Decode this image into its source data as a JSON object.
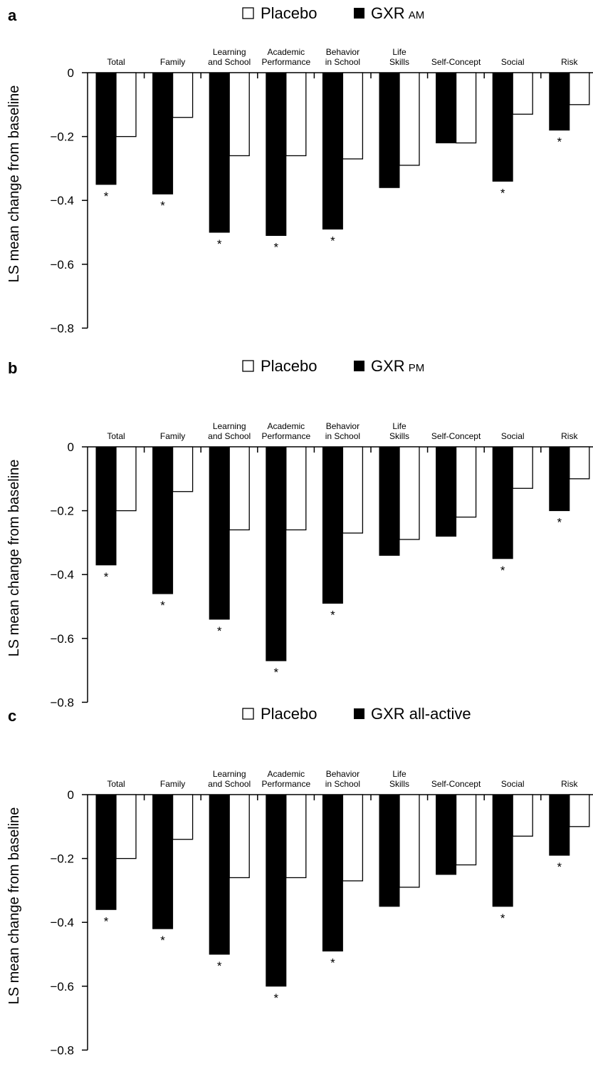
{
  "chart_data": [
    {
      "panel_label": "a",
      "type": "bar",
      "legend": {
        "items": [
          {
            "label": "Placebo",
            "fill": "#ffffff"
          },
          {
            "label": "GXR",
            "suffix": "AM",
            "fill": "#000000"
          }
        ]
      },
      "ylabel": "LS mean change from baseline",
      "ylim": [
        -0.8,
        0
      ],
      "yticks": [
        "0",
        "−0.2",
        "−0.4",
        "−0.6",
        "−0.8"
      ],
      "categories": [
        [
          "Total"
        ],
        [
          "Family"
        ],
        [
          "Learning",
          "and School"
        ],
        [
          "Academic",
          "Performance"
        ],
        [
          "Behavior",
          "in School"
        ],
        [
          "Life",
          "Skills"
        ],
        [
          "Self-Concept"
        ],
        [
          "Social"
        ],
        [
          "Risk"
        ]
      ],
      "series": [
        {
          "name": "GXR AM",
          "fill": "#000000",
          "values": [
            -0.35,
            -0.38,
            -0.5,
            -0.51,
            -0.49,
            -0.36,
            -0.22,
            -0.34,
            -0.18
          ]
        },
        {
          "name": "Placebo",
          "fill": "#ffffff",
          "values": [
            -0.2,
            -0.14,
            -0.26,
            -0.26,
            -0.27,
            -0.29,
            -0.22,
            -0.13,
            -0.1
          ]
        }
      ],
      "significance_marker": "*",
      "significant": [
        true,
        true,
        true,
        true,
        true,
        false,
        false,
        true,
        true
      ]
    },
    {
      "panel_label": "b",
      "type": "bar",
      "legend": {
        "items": [
          {
            "label": "Placebo",
            "fill": "#ffffff"
          },
          {
            "label": "GXR",
            "suffix": "PM",
            "fill": "#000000"
          }
        ]
      },
      "ylabel": "LS mean change from baseline",
      "ylim": [
        -0.8,
        0
      ],
      "yticks": [
        "0",
        "−0.2",
        "−0.4",
        "−0.6",
        "−0.8"
      ],
      "categories": [
        [
          "Total"
        ],
        [
          "Family"
        ],
        [
          "Learning",
          "and School"
        ],
        [
          "Academic",
          "Performance"
        ],
        [
          "Behavior",
          "in School"
        ],
        [
          "Life",
          "Skills"
        ],
        [
          "Self-Concept"
        ],
        [
          "Social"
        ],
        [
          "Risk"
        ]
      ],
      "series": [
        {
          "name": "GXR PM",
          "fill": "#000000",
          "values": [
            -0.37,
            -0.46,
            -0.54,
            -0.67,
            -0.49,
            -0.34,
            -0.28,
            -0.35,
            -0.2
          ]
        },
        {
          "name": "Placebo",
          "fill": "#ffffff",
          "values": [
            -0.2,
            -0.14,
            -0.26,
            -0.26,
            -0.27,
            -0.29,
            -0.22,
            -0.13,
            -0.1
          ]
        }
      ],
      "significance_marker": "*",
      "significant": [
        true,
        true,
        true,
        true,
        true,
        false,
        false,
        true,
        true
      ]
    },
    {
      "panel_label": "c",
      "type": "bar",
      "legend": {
        "items": [
          {
            "label": "Placebo",
            "fill": "#ffffff"
          },
          {
            "label": "GXR all-active",
            "suffix": "",
            "fill": "#000000"
          }
        ]
      },
      "ylabel": "LS mean change from baseline",
      "ylim": [
        -0.8,
        0
      ],
      "yticks": [
        "0",
        "−0.2",
        "−0.4",
        "−0.6",
        "−0.8"
      ],
      "categories": [
        [
          "Total"
        ],
        [
          "Family"
        ],
        [
          "Learning",
          "and School"
        ],
        [
          "Academic",
          "Performance"
        ],
        [
          "Behavior",
          "in School"
        ],
        [
          "Life",
          "Skills"
        ],
        [
          "Self-Concept"
        ],
        [
          "Social"
        ],
        [
          "Risk"
        ]
      ],
      "series": [
        {
          "name": "GXR all-active",
          "fill": "#000000",
          "values": [
            -0.36,
            -0.42,
            -0.5,
            -0.6,
            -0.49,
            -0.35,
            -0.25,
            -0.35,
            -0.19
          ]
        },
        {
          "name": "Placebo",
          "fill": "#ffffff",
          "values": [
            -0.2,
            -0.14,
            -0.26,
            -0.26,
            -0.27,
            -0.29,
            -0.22,
            -0.13,
            -0.1
          ]
        }
      ],
      "significance_marker": "*",
      "significant": [
        true,
        true,
        true,
        true,
        true,
        false,
        false,
        true,
        true
      ]
    }
  ]
}
